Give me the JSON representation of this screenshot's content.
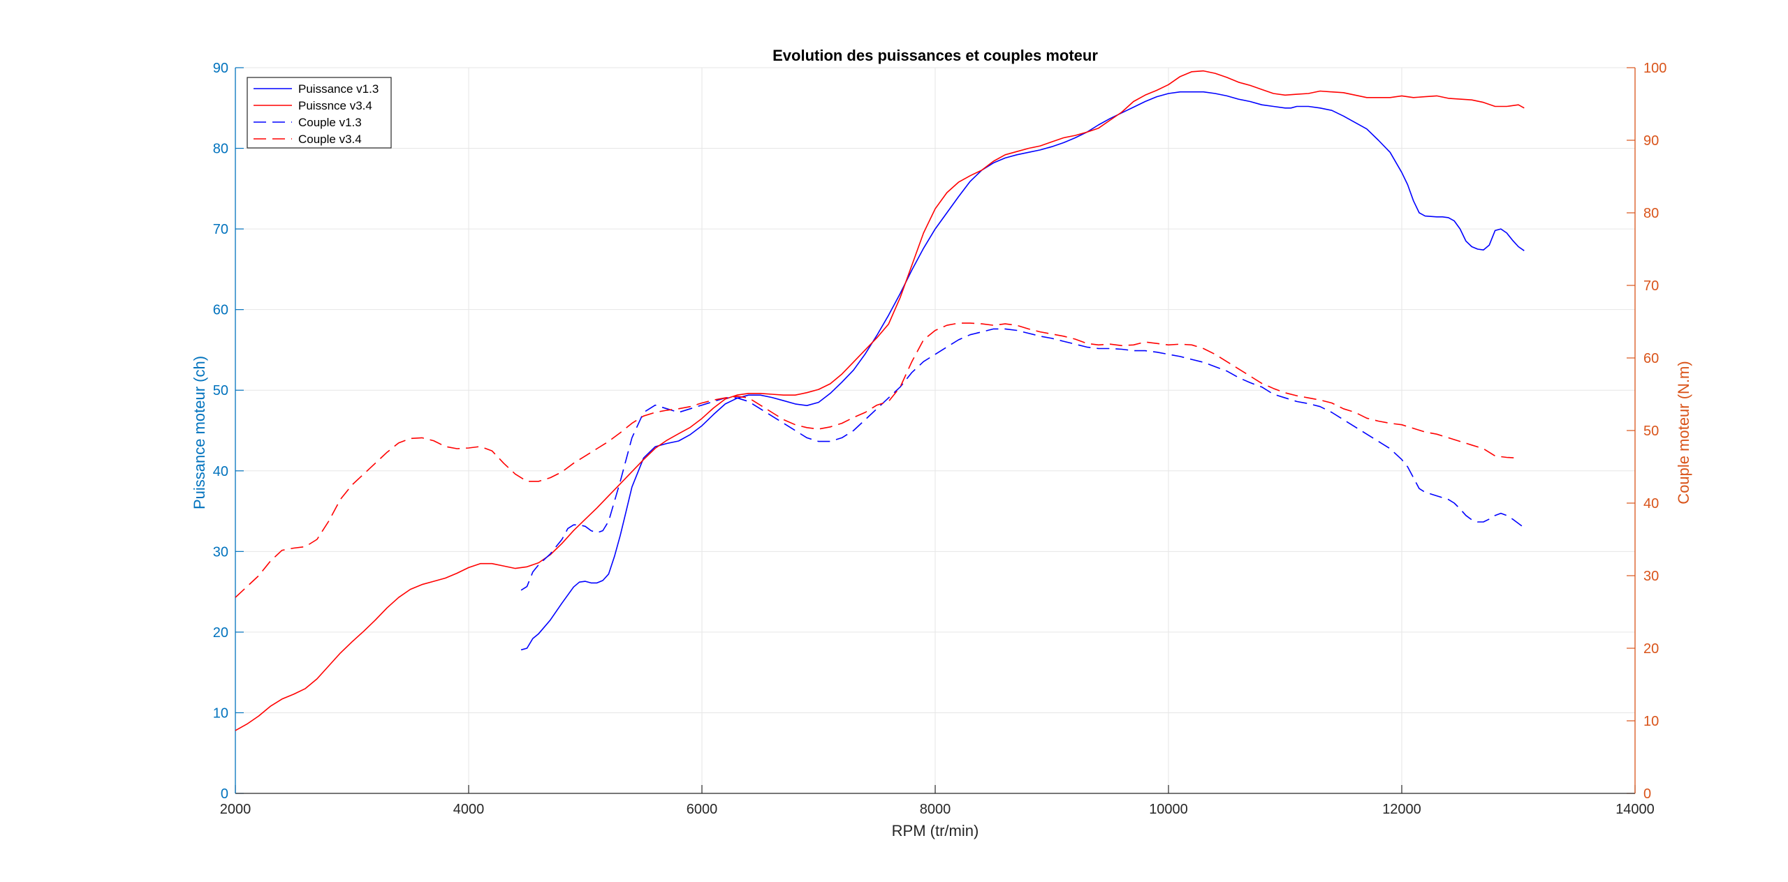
{
  "chart_data": {
    "type": "line",
    "title": "Evolution des puissances et couples moteur",
    "xlabel": "RPM (tr/min)",
    "ylabel_left": "Puissance moteur (ch)",
    "ylabel_right": "Couple moteur (N.m)",
    "xlim": [
      2000,
      14000
    ],
    "xticks": [
      2000,
      4000,
      6000,
      8000,
      10000,
      12000,
      14000
    ],
    "ylim_left": [
      0,
      90
    ],
    "yticks_left": [
      0,
      10,
      20,
      30,
      40,
      50,
      60,
      70,
      80,
      90
    ],
    "ylim_right": [
      0,
      100
    ],
    "yticks_right": [
      0,
      10,
      20,
      30,
      40,
      50,
      60,
      70,
      80,
      90,
      100
    ],
    "grid": true,
    "legend_position": "top-left",
    "colors": {
      "left_axis": "#0072BD",
      "right_axis": "#D95319",
      "v13": "#0000FF",
      "v34": "#FF0000",
      "grid": "#e6e6e6",
      "axis_line": "#262626"
    },
    "series": [
      {
        "name": "Puissance v1.3",
        "axis": "left",
        "color": "#0000FF",
        "dash": "solid",
        "x": [
          4450,
          4500,
          4550,
          4600,
          4700,
          4800,
          4900,
          4950,
          5000,
          5050,
          5100,
          5150,
          5200,
          5250,
          5300,
          5350,
          5400,
          5500,
          5600,
          5700,
          5800,
          5900,
          6000,
          6100,
          6200,
          6300,
          6400,
          6500,
          6600,
          6700,
          6800,
          6900,
          7000,
          7100,
          7200,
          7300,
          7400,
          7500,
          7600,
          7700,
          7800,
          7900,
          8000,
          8100,
          8200,
          8300,
          8400,
          8500,
          8600,
          8700,
          8800,
          8900,
          9000,
          9100,
          9200,
          9300,
          9400,
          9500,
          9600,
          9700,
          9800,
          9900,
          10000,
          10100,
          10200,
          10300,
          10400,
          10500,
          10600,
          10700,
          10800,
          10900,
          11000,
          11050,
          11100,
          11200,
          11300,
          11400,
          11500,
          11600,
          11700,
          11800,
          11900,
          12000,
          12050,
          12100,
          12150,
          12200,
          12300,
          12350,
          12400,
          12450,
          12500,
          12550,
          12600,
          12650,
          12700,
          12750,
          12800,
          12850,
          12900,
          12950,
          13000,
          13050
        ],
        "values": [
          17.8,
          18.0,
          19.2,
          19.8,
          21.5,
          23.6,
          25.6,
          26.2,
          26.3,
          26.1,
          26.1,
          26.4,
          27.2,
          29.4,
          32.0,
          35.0,
          38.0,
          41.6,
          43.0,
          43.4,
          43.7,
          44.5,
          45.6,
          47.0,
          48.3,
          49.0,
          49.4,
          49.4,
          49.1,
          48.7,
          48.3,
          48.1,
          48.5,
          49.6,
          51.0,
          52.5,
          54.5,
          56.8,
          59.3,
          62.0,
          64.9,
          67.6,
          70.0,
          72.0,
          74.0,
          75.9,
          77.3,
          78.2,
          78.8,
          79.2,
          79.5,
          79.8,
          80.2,
          80.7,
          81.3,
          82.0,
          82.9,
          83.7,
          84.4,
          85.1,
          85.8,
          86.4,
          86.8,
          87.0,
          87.0,
          87.0,
          86.8,
          86.5,
          86.1,
          85.8,
          85.4,
          85.2,
          85.0,
          85.0,
          85.2,
          85.2,
          85.0,
          84.7,
          84.0,
          83.2,
          82.4,
          81.0,
          79.5,
          77.0,
          75.5,
          73.5,
          72.0,
          71.6,
          71.5,
          71.5,
          71.4,
          71.0,
          70.0,
          68.5,
          67.8,
          67.5,
          67.4,
          68.0,
          69.8,
          70.0,
          69.5,
          68.6,
          67.8,
          67.3
        ]
      },
      {
        "name": "Puissnce v3.4",
        "axis": "left",
        "color": "#FF0000",
        "dash": "solid",
        "x": [
          2000,
          2100,
          2200,
          2300,
          2400,
          2500,
          2600,
          2700,
          2800,
          2900,
          3000,
          3100,
          3200,
          3300,
          3400,
          3500,
          3600,
          3700,
          3800,
          3900,
          4000,
          4100,
          4200,
          4300,
          4400,
          4500,
          4600,
          4700,
          4800,
          4900,
          5000,
          5100,
          5200,
          5300,
          5400,
          5500,
          5600,
          5700,
          5800,
          5900,
          6000,
          6100,
          6200,
          6300,
          6400,
          6500,
          6600,
          6700,
          6800,
          6900,
          7000,
          7100,
          7200,
          7300,
          7400,
          7500,
          7600,
          7700,
          7800,
          7900,
          8000,
          8100,
          8200,
          8300,
          8400,
          8500,
          8600,
          8700,
          8800,
          8900,
          9000,
          9100,
          9200,
          9300,
          9400,
          9500,
          9600,
          9700,
          9800,
          9900,
          10000,
          10100,
          10200,
          10300,
          10400,
          10500,
          10600,
          10700,
          10800,
          10900,
          11000,
          11100,
          11200,
          11300,
          11400,
          11500,
          11600,
          11700,
          11800,
          11900,
          12000,
          12100,
          12200,
          12300,
          12400,
          12500,
          12600,
          12700,
          12800,
          12900,
          13000,
          13050
        ],
        "values": [
          7.8,
          8.6,
          9.6,
          10.8,
          11.7,
          12.3,
          13.0,
          14.2,
          15.8,
          17.4,
          18.8,
          20.1,
          21.5,
          23.0,
          24.3,
          25.3,
          25.9,
          26.3,
          26.7,
          27.3,
          28.0,
          28.5,
          28.5,
          28.2,
          27.9,
          28.1,
          28.6,
          29.6,
          31.0,
          32.6,
          34.0,
          35.4,
          36.9,
          38.4,
          39.9,
          41.4,
          42.8,
          43.8,
          44.6,
          45.4,
          46.5,
          47.8,
          48.9,
          49.4,
          49.6,
          49.6,
          49.5,
          49.4,
          49.4,
          49.7,
          50.1,
          50.8,
          52.0,
          53.5,
          55.0,
          56.5,
          58.2,
          61.5,
          65.5,
          69.5,
          72.5,
          74.5,
          75.8,
          76.6,
          77.3,
          78.4,
          79.2,
          79.6,
          80.0,
          80.3,
          80.8,
          81.3,
          81.6,
          82.0,
          82.5,
          83.5,
          84.5,
          85.8,
          86.6,
          87.2,
          87.9,
          88.9,
          89.5,
          89.6,
          89.3,
          88.8,
          88.2,
          87.8,
          87.3,
          86.8,
          86.6,
          86.7,
          86.8,
          87.1,
          87.0,
          86.9,
          86.6,
          86.3,
          86.3,
          86.3,
          86.5,
          86.3,
          86.4,
          86.5,
          86.2,
          86.1,
          86.0,
          85.7,
          85.2,
          85.2,
          85.4,
          85.0
        ]
      },
      {
        "name": "Couple v1.3",
        "axis": "right",
        "color": "#0000FF",
        "dash": "dashed",
        "x": [
          4450,
          4500,
          4550,
          4600,
          4700,
          4800,
          4850,
          4900,
          4950,
          5000,
          5050,
          5100,
          5150,
          5200,
          5300,
          5400,
          5500,
          5600,
          5700,
          5800,
          5900,
          6000,
          6100,
          6200,
          6300,
          6400,
          6500,
          6600,
          6700,
          6800,
          6900,
          7000,
          7100,
          7200,
          7300,
          7400,
          7500,
          7600,
          7700,
          7800,
          7900,
          8000,
          8100,
          8200,
          8300,
          8400,
          8500,
          8600,
          8700,
          8800,
          8900,
          9000,
          9100,
          9200,
          9300,
          9400,
          9500,
          9600,
          9700,
          9800,
          9900,
          10000,
          10100,
          10200,
          10300,
          10400,
          10500,
          10600,
          10700,
          10800,
          10900,
          11000,
          11100,
          11200,
          11300,
          11400,
          11500,
          11600,
          11700,
          11800,
          11900,
          12000,
          12050,
          12100,
          12150,
          12200,
          12300,
          12400,
          12450,
          12500,
          12550,
          12600,
          12650,
          12700,
          12750,
          12800,
          12850,
          12900,
          12950,
          13000,
          13050
        ],
        "values": [
          28.0,
          28.5,
          30.5,
          31.5,
          33.0,
          35.0,
          36.5,
          37.0,
          37.0,
          36.8,
          36.2,
          35.9,
          36.2,
          37.5,
          43.0,
          49.0,
          52.5,
          53.5,
          53.0,
          52.5,
          53.0,
          53.5,
          54.0,
          54.5,
          54.5,
          54.0,
          53.0,
          52.0,
          51.0,
          50.0,
          49.0,
          48.5,
          48.5,
          49.0,
          50.0,
          51.5,
          53.0,
          54.5,
          56.0,
          58.0,
          59.5,
          60.5,
          61.5,
          62.5,
          63.2,
          63.6,
          64.0,
          64.0,
          63.8,
          63.4,
          63.0,
          62.7,
          62.3,
          61.9,
          61.5,
          61.3,
          61.3,
          61.2,
          61.0,
          61.0,
          60.8,
          60.5,
          60.2,
          59.8,
          59.4,
          58.8,
          58.2,
          57.3,
          56.6,
          56.0,
          55.0,
          54.5,
          54.0,
          53.7,
          53.3,
          52.5,
          51.5,
          50.5,
          49.5,
          48.5,
          47.5,
          46.0,
          45.0,
          43.5,
          42.0,
          41.5,
          41.0,
          40.5,
          40.0,
          39.2,
          38.3,
          37.7,
          37.4,
          37.4,
          37.8,
          38.3,
          38.6,
          38.3,
          37.8,
          37.2,
          36.6
        ]
      },
      {
        "name": "Couple v3.4",
        "axis": "right",
        "color": "#FF0000",
        "dash": "dashed",
        "x": [
          2000,
          2100,
          2200,
          2300,
          2400,
          2500,
          2600,
          2700,
          2800,
          2900,
          3000,
          3100,
          3200,
          3300,
          3400,
          3500,
          3600,
          3700,
          3800,
          3900,
          4000,
          4100,
          4200,
          4300,
          4400,
          4500,
          4600,
          4700,
          4800,
          4900,
          5000,
          5100,
          5200,
          5300,
          5400,
          5500,
          5600,
          5700,
          5800,
          5900,
          6000,
          6100,
          6200,
          6300,
          6400,
          6500,
          6600,
          6700,
          6800,
          6900,
          7000,
          7100,
          7200,
          7300,
          7400,
          7500,
          7600,
          7700,
          7800,
          7900,
          8000,
          8100,
          8200,
          8300,
          8400,
          8500,
          8600,
          8700,
          8800,
          8900,
          9000,
          9100,
          9200,
          9300,
          9400,
          9500,
          9600,
          9700,
          9800,
          9900,
          10000,
          10100,
          10200,
          10300,
          10400,
          10500,
          10600,
          10700,
          10800,
          10900,
          11000,
          11100,
          11200,
          11300,
          11400,
          11500,
          11600,
          11700,
          11800,
          11900,
          12000,
          12100,
          12200,
          12300,
          12400,
          12500,
          12600,
          12700,
          12800,
          12900,
          13000
        ],
        "values": [
          27.0,
          28.5,
          30.0,
          32.0,
          33.5,
          33.8,
          34.0,
          35.0,
          37.5,
          40.5,
          42.5,
          44.0,
          45.5,
          47.0,
          48.3,
          48.9,
          49.0,
          48.6,
          47.8,
          47.5,
          47.6,
          47.8,
          47.2,
          45.5,
          44.0,
          43.0,
          43.0,
          43.5,
          44.3,
          45.5,
          46.5,
          47.5,
          48.5,
          49.7,
          51.0,
          52.0,
          52.5,
          52.8,
          53.0,
          53.3,
          53.8,
          54.2,
          54.5,
          54.7,
          54.5,
          53.5,
          52.5,
          51.5,
          50.8,
          50.4,
          50.2,
          50.5,
          51.0,
          51.8,
          52.5,
          53.5,
          54.0,
          56.0,
          59.5,
          62.5,
          63.8,
          64.5,
          64.8,
          64.8,
          64.7,
          64.5,
          64.7,
          64.5,
          64.0,
          63.6,
          63.3,
          63.0,
          62.6,
          62.0,
          61.8,
          61.9,
          61.7,
          61.8,
          62.2,
          62.0,
          61.8,
          61.9,
          61.8,
          61.3,
          60.5,
          59.5,
          58.5,
          57.5,
          56.5,
          55.8,
          55.2,
          54.8,
          54.5,
          54.2,
          53.8,
          53.0,
          52.5,
          51.7,
          51.3,
          51.0,
          50.8,
          50.3,
          49.8,
          49.5,
          49.0,
          48.5,
          48.0,
          47.5,
          46.5,
          46.3,
          46.2
        ]
      }
    ]
  }
}
